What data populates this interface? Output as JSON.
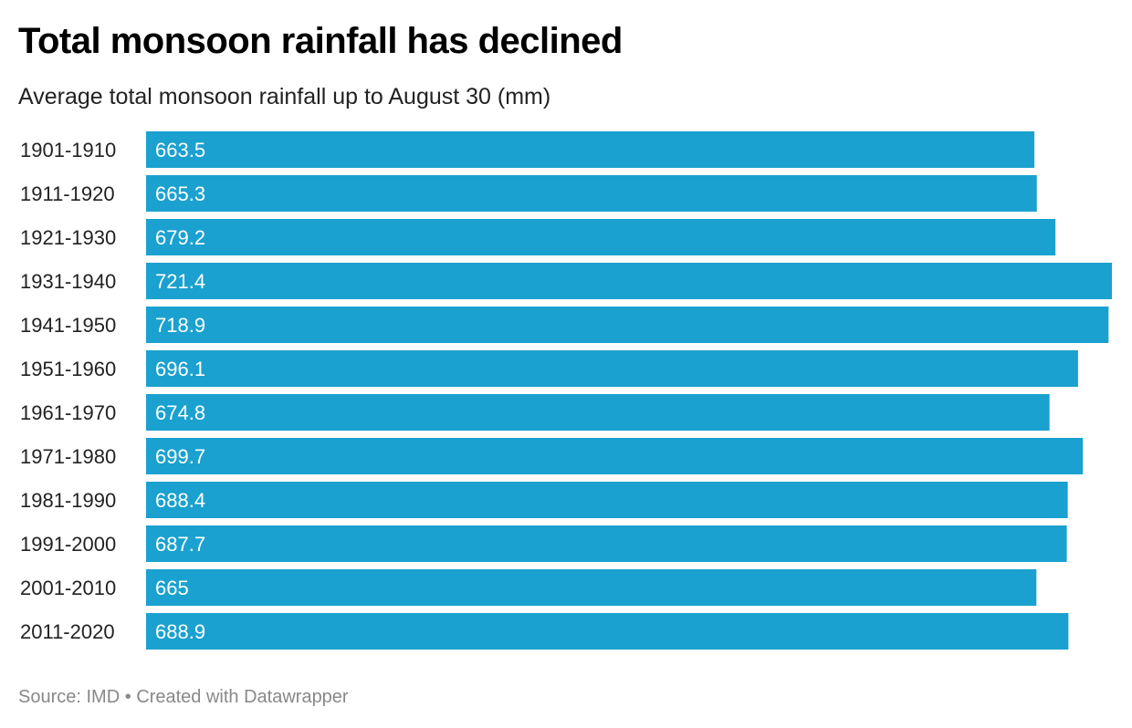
{
  "chart_data": {
    "type": "bar",
    "orientation": "horizontal",
    "title": "Total monsoon rainfall has declined",
    "subtitle": "Average total monsoon rainfall up to August 30 (mm)",
    "categories": [
      "1901-1910",
      "1911-1920",
      "1921-1930",
      "1931-1940",
      "1941-1950",
      "1951-1960",
      "1961-1970",
      "1971-1980",
      "1981-1990",
      "1991-2000",
      "2001-2010",
      "2011-2020"
    ],
    "values": [
      663.5,
      665.3,
      679.2,
      721.4,
      718.9,
      696.1,
      674.8,
      699.7,
      688.4,
      687.7,
      665,
      688.9
    ],
    "value_labels": [
      "663.5",
      "665.3",
      "679.2",
      "721.4",
      "718.9",
      "696.1",
      "674.8",
      "699.7",
      "688.4",
      "687.7",
      "665",
      "688.9"
    ],
    "xlim": [
      0,
      721.4
    ],
    "grid": false,
    "bar_color": "#1aa1cf"
  },
  "footer": {
    "text": "Source: IMD • Created with Datawrapper"
  }
}
